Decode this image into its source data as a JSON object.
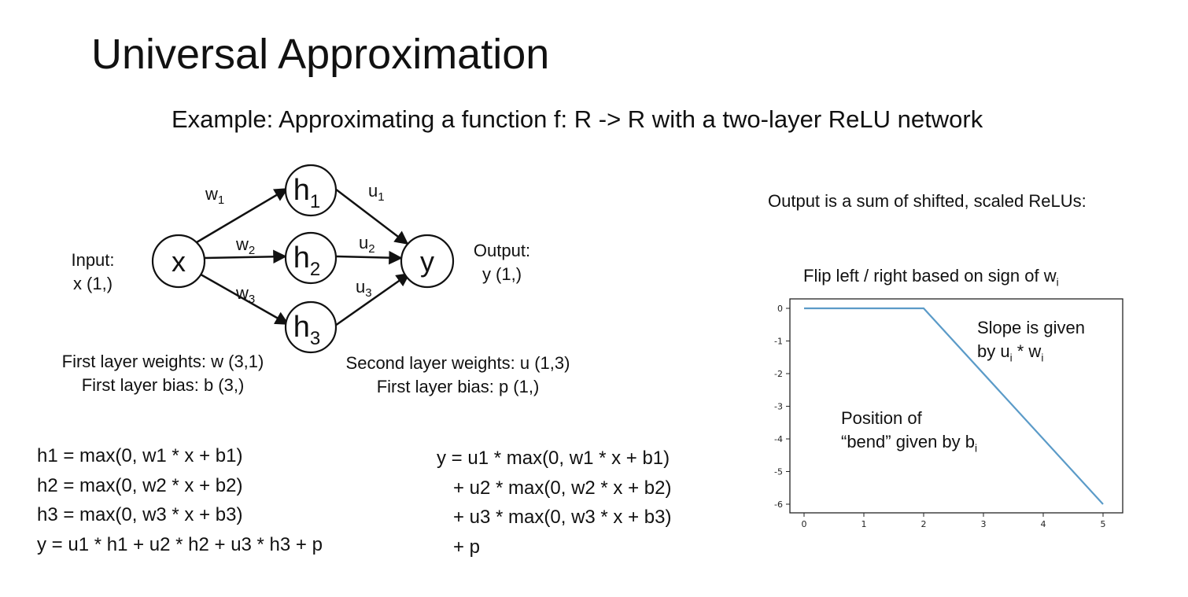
{
  "title": "Universal Approximation",
  "subtitle": "Example: Approximating a function f: R -> R with a two-layer ReLU network",
  "network": {
    "input_label": [
      "Input:",
      "x (1,)"
    ],
    "output_label": [
      "Output:",
      "y (1,)"
    ],
    "nodes": {
      "x": "x",
      "h1": {
        "base": "h",
        "sub": "1"
      },
      "h2": {
        "base": "h",
        "sub": "2"
      },
      "h3": {
        "base": "h",
        "sub": "3"
      },
      "y": "y"
    },
    "edges": {
      "w1": {
        "base": "w",
        "sub": "1"
      },
      "w2": {
        "base": "w",
        "sub": "2"
      },
      "w3": {
        "base": "w",
        "sub": "3"
      },
      "u1": {
        "base": "u",
        "sub": "1"
      },
      "u2": {
        "base": "u",
        "sub": "2"
      },
      "u3": {
        "base": "u",
        "sub": "3"
      }
    },
    "first_layer": [
      "First layer weights: w (3,1)",
      "First layer bias: b (3,)"
    ],
    "second_layer": [
      "Second layer weights: u (1,3)",
      "First layer bias: p (1,)"
    ]
  },
  "equations_left": [
    "h1 = max(0, w1 * x + b1)",
    "h2 = max(0, w2 * x + b2)",
    "h3 = max(0, w3 * x + b3)",
    "y = u1 * h1 + u2 * h2 + u3 * h3 + p"
  ],
  "equations_right": [
    "y = u1 * max(0, w1 * x + b1)",
    "+ u2 * max(0, w2 * x + b2)",
    "+ u3 * max(0, w3 * x + b3)",
    "+ p"
  ],
  "right_panel": {
    "heading": "Output is a sum of shifted, scaled ReLUs:",
    "flip_text": "Flip left / right based on sign of w",
    "flip_sub": "i",
    "slope_text_1": "Slope is given",
    "slope_text_2": {
      "a": "by u",
      "a_sub": "i",
      "b": " * w",
      "b_sub": "i"
    },
    "bend_text_1": "Position of",
    "bend_text_2": {
      "a": "“bend” given by b",
      "a_sub": "i"
    }
  },
  "chart_data": {
    "type": "line",
    "x": [
      0,
      2,
      5
    ],
    "y": [
      0,
      0,
      -6
    ],
    "xlim": [
      0,
      5
    ],
    "ylim": [
      -6,
      0
    ],
    "xticks": [
      "0",
      "1",
      "2",
      "3",
      "4",
      "5"
    ],
    "yticks": [
      "0",
      "-1",
      "-2",
      "-3",
      "-4",
      "-5",
      "-6"
    ],
    "line_color": "#5b9bc8",
    "grid": false
  }
}
